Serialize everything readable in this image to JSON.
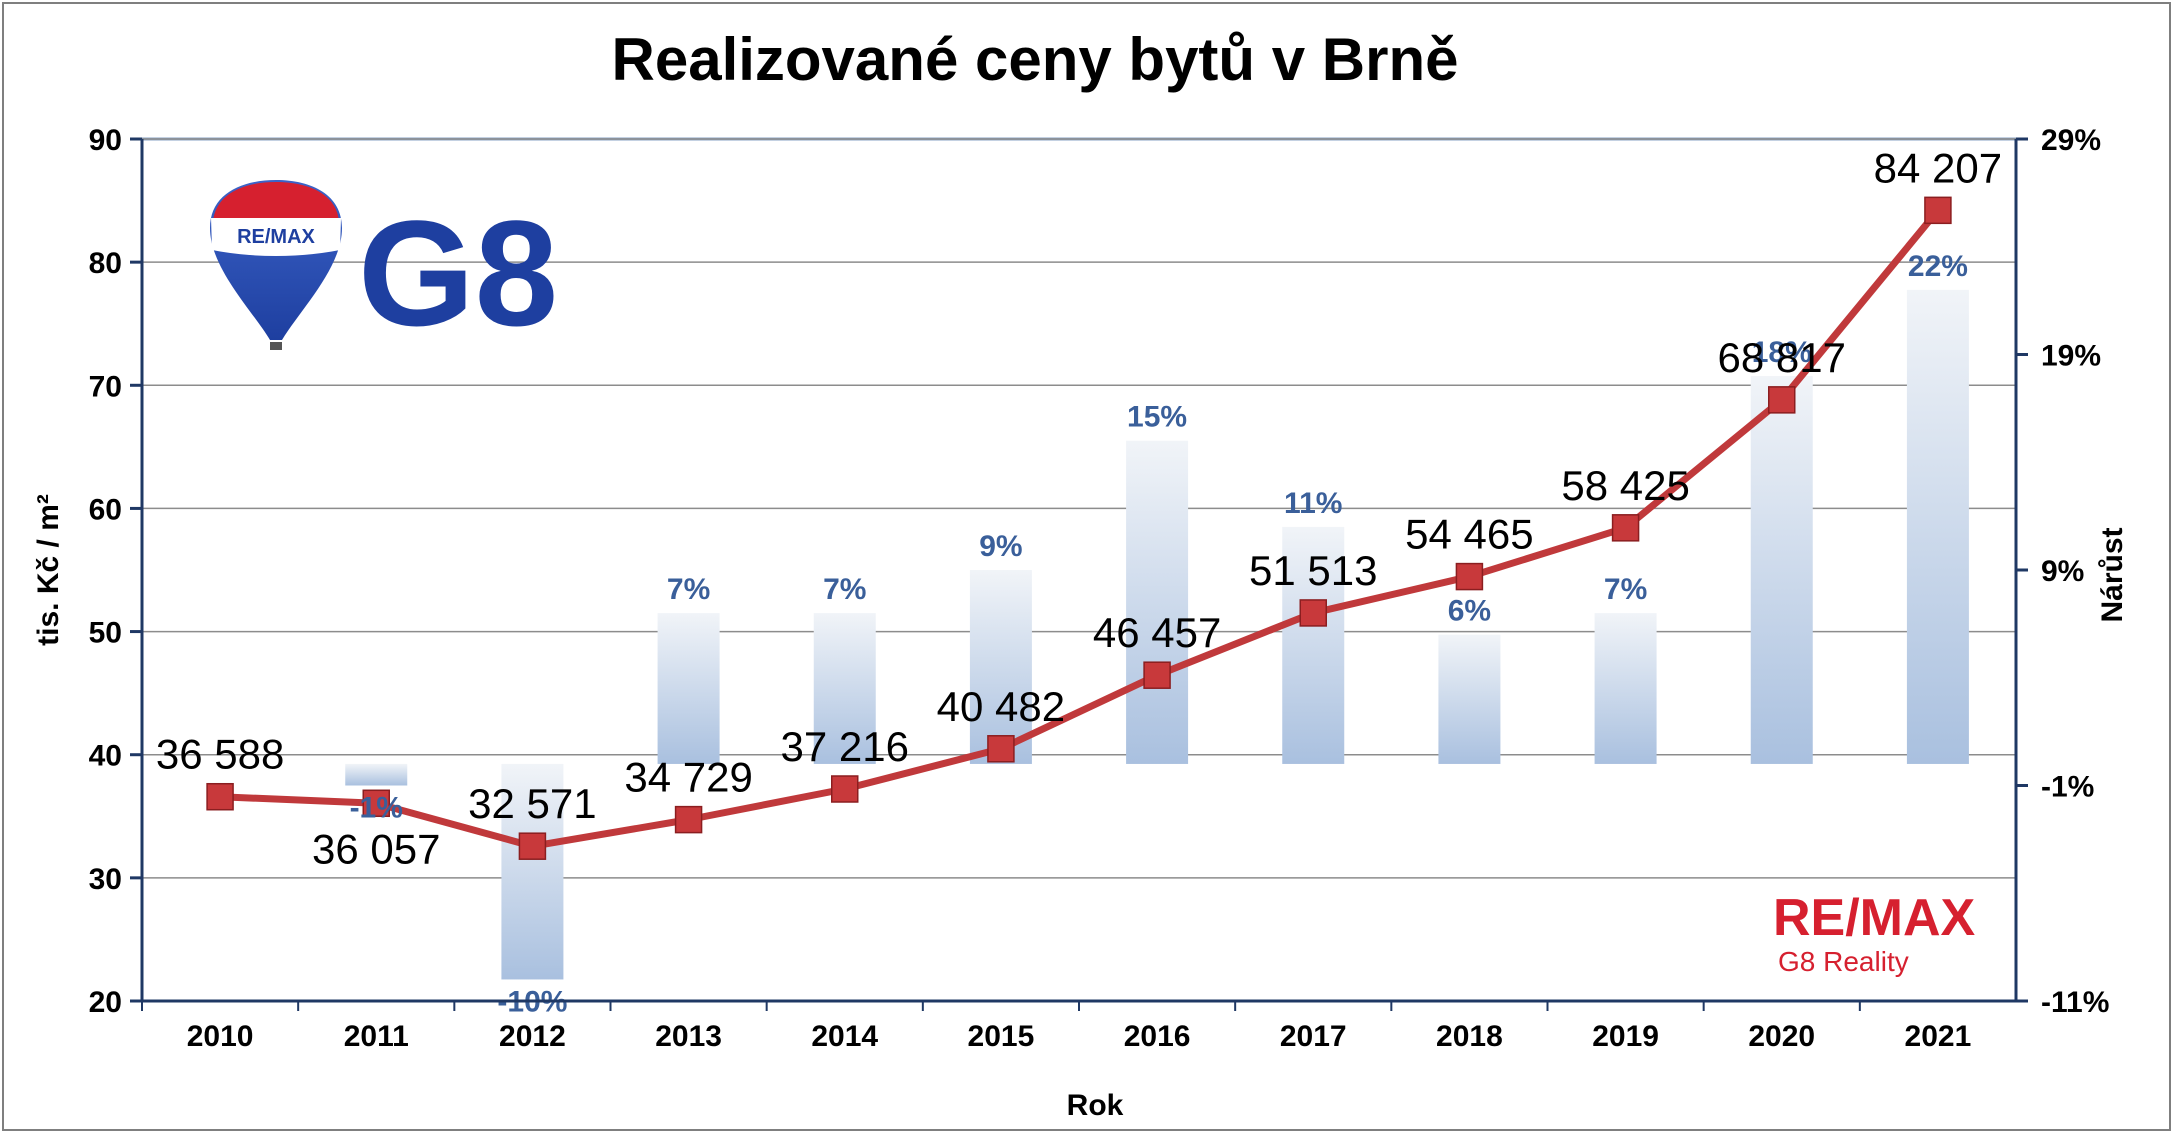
{
  "chart_data": {
    "type": "bar+line",
    "title": "Realizované ceny bytů v Brně",
    "xlabel": "Rok",
    "ylabel_left": "tis. Kč / m²",
    "ylabel_right": "Nárůst",
    "categories": [
      "2010",
      "2011",
      "2012",
      "2013",
      "2014",
      "2015",
      "2016",
      "2017",
      "2018",
      "2019",
      "2020",
      "2021"
    ],
    "y_left": {
      "min": 20,
      "max": 90,
      "ticks": [
        "20",
        "30",
        "40",
        "50",
        "60",
        "70",
        "80",
        "90"
      ]
    },
    "y_right": {
      "min": -11,
      "max": 29,
      "ticks": [
        "-11%",
        "-1%",
        "9%",
        "19%",
        "29%"
      ]
    },
    "series": [
      {
        "type": "bar",
        "axis": "right",
        "values": [
          null,
          -1,
          -10,
          7,
          7,
          9,
          15,
          11,
          6,
          7,
          18,
          22
        ],
        "labels": [
          "",
          "-1%",
          "-10%",
          "7%",
          "7%",
          "9%",
          "15%",
          "11%",
          "6%",
          "7%",
          "18%",
          "22%"
        ]
      },
      {
        "type": "line",
        "axis": "left",
        "values": [
          36.588,
          36.057,
          32.571,
          34.729,
          37.216,
          40.482,
          46.457,
          51.513,
          54.465,
          58.425,
          68.817,
          84.207
        ],
        "labels": [
          "36 588",
          "36 057",
          "32 571",
          "34 729",
          "37 216",
          "40 482",
          "46 457",
          "51 513",
          "54 465",
          "58 425",
          "68 817",
          "84 207"
        ]
      }
    ],
    "grid": true,
    "colors": {
      "line": "#c0393b",
      "marker": "#c8393b",
      "bar_top": "#eef2f7",
      "bar_bottom": "#a9c0df",
      "pct_text": "#3a5f9a",
      "grid": "#8c8c8c"
    }
  },
  "logos": {
    "top_left": {
      "balloon_text": "RE/MAX",
      "brand": "G8"
    },
    "bottom_right": {
      "brand": "RE/MAX",
      "subtitle": "G8 Reality"
    }
  }
}
